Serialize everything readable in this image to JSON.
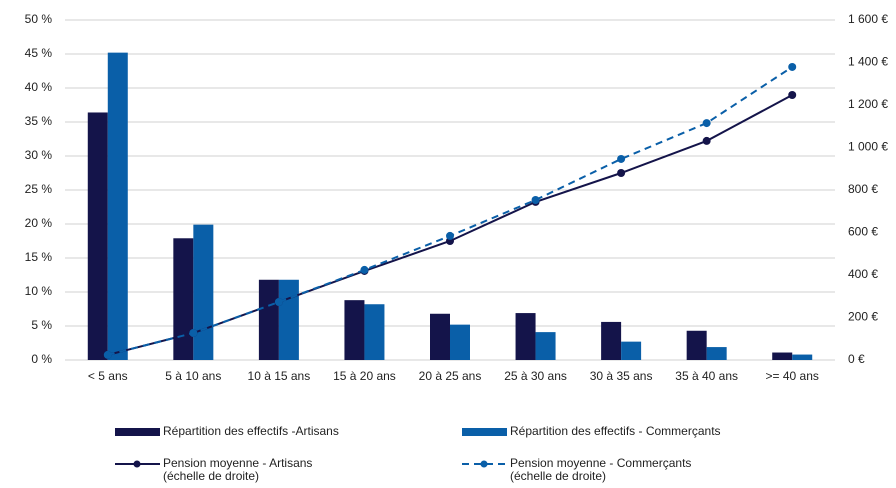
{
  "chart_data": {
    "type": "bar",
    "categories": [
      "< 5 ans",
      "5 à 10 ans",
      "10 à 15 ans",
      "15 à 20 ans",
      "20 à 25 ans",
      "25 à 30 ans",
      "30 à 35 ans",
      "35 à 40 ans",
      ">= 40 ans"
    ],
    "series": [
      {
        "name": "Répartition des effectifs -Artisans",
        "type": "bar",
        "color": "#14144a",
        "values": [
          36.4,
          17.9,
          11.8,
          8.8,
          6.8,
          6.9,
          5.6,
          4.3,
          1.1
        ]
      },
      {
        "name": "Répartition des effectifs - Commerçants",
        "type": "bar",
        "color": "#0a5fa8",
        "values": [
          45.2,
          19.9,
          11.8,
          8.2,
          5.2,
          4.1,
          2.7,
          1.9,
          0.8
        ]
      },
      {
        "name": "Pension moyenne - Artisans\n(échelle de droite)",
        "type": "line",
        "axis": "y2",
        "line_style": "solid",
        "color": "#14144a",
        "values": [
          24,
          127,
          273,
          419,
          560,
          744,
          880,
          1031,
          1247
        ]
      },
      {
        "name": "Pension moyenne - Commerçants\n(échelle de droite)",
        "type": "line",
        "axis": "y2",
        "line_style": "dashed",
        "color": "#0a5fa8",
        "values": [
          24,
          127,
          273,
          424,
          584,
          753,
          946,
          1115,
          1379
        ]
      }
    ],
    "ylim": [
      0,
      50
    ],
    "yticks": [
      {
        "value": 0,
        "label": "0 %"
      },
      {
        "value": 5,
        "label": "5 %"
      },
      {
        "value": 10,
        "label": "10 %"
      },
      {
        "value": 15,
        "label": "15 %"
      },
      {
        "value": 20,
        "label": "20 %"
      },
      {
        "value": 25,
        "label": "25 %"
      },
      {
        "value": 30,
        "label": "30 %"
      },
      {
        "value": 35,
        "label": "35 %"
      },
      {
        "value": 40,
        "label": "40 %"
      },
      {
        "value": 45,
        "label": "45 %"
      },
      {
        "value": 50,
        "label": "50 %"
      }
    ],
    "y2lim": [
      0,
      1600
    ],
    "y2ticks": [
      {
        "value": 0,
        "label": "0 €"
      },
      {
        "value": 200,
        "label": "200 €"
      },
      {
        "value": 400,
        "label": "400 €"
      },
      {
        "value": 600,
        "label": "600 €"
      },
      {
        "value": 800,
        "label": "800 €"
      },
      {
        "value": 1000,
        "label": "1 000 €"
      },
      {
        "value": 1200,
        "label": "1 200 €"
      },
      {
        "value": 1400,
        "label": "1 400 €"
      },
      {
        "value": 1600,
        "label": "1 600 €"
      }
    ],
    "grid": true
  }
}
